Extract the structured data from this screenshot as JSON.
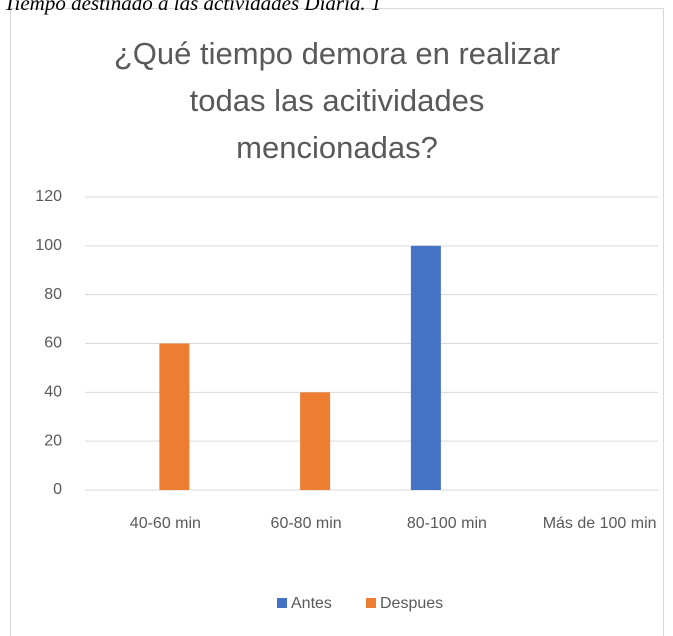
{
  "caption": "Tiempo destinado a las actividades Diaria. 1",
  "chart_data": {
    "type": "bar",
    "title": "¿Qué tiempo demora en realizar todas las acitividades mencionadas?",
    "categories": [
      "40-60 min",
      "60-80 min",
      "80-100 min",
      "Más de 100 min"
    ],
    "series": [
      {
        "name": "Antes",
        "color": "#4472c4",
        "values": [
          0,
          0,
          100,
          0
        ]
      },
      {
        "name": "Despues",
        "color": "#ed7d31",
        "values": [
          60,
          40,
          0,
          0
        ]
      }
    ],
    "ylim": [
      0,
      120
    ],
    "yticks": [
      0,
      20,
      40,
      60,
      80,
      100,
      120
    ],
    "grid": true,
    "legend": "bottom"
  }
}
